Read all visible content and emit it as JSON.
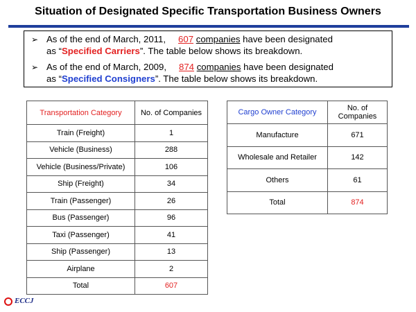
{
  "title": "Situation of Designated Specific Transportation Business Owners",
  "summary": {
    "bullet1": {
      "pre": "As of the end of March, 2011,",
      "number": "607",
      "unit": "companies",
      "mid": "have been designated",
      "line2_pre": "as “",
      "designation": "Specified Carriers",
      "line2_post": "”. The table below shows its breakdown."
    },
    "bullet2": {
      "pre": "As of the end of March, 2009,",
      "number": "874",
      "unit": "companies",
      "mid": "have been designated",
      "line2_pre": "as “",
      "designation": "Specified Consigners",
      "line2_post": "”. The table below shows its breakdown."
    }
  },
  "carriers_table": {
    "header_category": "Transportation Category",
    "header_count": "No. of Companies",
    "rows": [
      {
        "category": "Train (Freight)",
        "count": "1"
      },
      {
        "category": "Vehicle (Business)",
        "count": "288"
      },
      {
        "category": "Vehicle (Business/Private)",
        "count": "106"
      },
      {
        "category": "Ship (Freight)",
        "count": "34"
      },
      {
        "category": "Train (Passenger)",
        "count": "26"
      },
      {
        "category": "Bus (Passenger)",
        "count": "96"
      },
      {
        "category": "Taxi (Passenger)",
        "count": "41"
      },
      {
        "category": "Ship (Passenger)",
        "count": "13"
      },
      {
        "category": "Airplane",
        "count": "2"
      }
    ],
    "total_label": "Total",
    "total_value": "607"
  },
  "consigners_table": {
    "header_category": "Cargo Owner Category",
    "header_count": "No. of Companies",
    "rows": [
      {
        "category": "Manufacture",
        "count": "671"
      },
      {
        "category": "Wholesale and Retailer",
        "count": "142"
      },
      {
        "category": "Others",
        "count": "61"
      }
    ],
    "total_label": "Total",
    "total_value": "874"
  },
  "logo": {
    "text": "ECCJ",
    "colors": {
      "ring": "#dd1111",
      "text": "#1b2a86"
    }
  },
  "colors": {
    "accent_red": "#e32222",
    "accent_blue": "#1f3fd0",
    "title_bar": "#1f3f9c"
  }
}
